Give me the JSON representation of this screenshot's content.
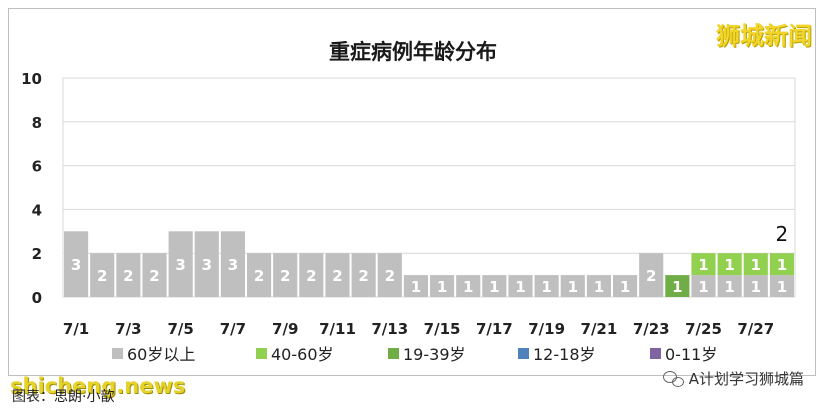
{
  "watermark_top": "狮城新闻",
  "watermark_bottom": "shicheng.news",
  "source": "图表：思朗·小歆",
  "wechat_account": "A计划学习狮城篇",
  "chart_data": {
    "type": "bar",
    "stacked": true,
    "title": "重症病例年龄分布",
    "xlabel": "",
    "ylabel": "",
    "ylim": [
      0,
      10
    ],
    "yticks": [
      0,
      2,
      4,
      6,
      8,
      10
    ],
    "grid": true,
    "legend_position": "bottom",
    "categories": [
      "7/1",
      "7/2",
      "7/3",
      "7/4",
      "7/5",
      "7/6",
      "7/7",
      "7/8",
      "7/9",
      "7/10",
      "7/11",
      "7/12",
      "7/13",
      "7/14",
      "7/15",
      "7/16",
      "7/17",
      "7/18",
      "7/19",
      "7/20",
      "7/21",
      "7/22",
      "7/23",
      "7/24",
      "7/25",
      "7/26",
      "7/27",
      "7/28"
    ],
    "tick_labels": [
      "7/1",
      "",
      "7/3",
      "",
      "7/5",
      "",
      "7/7",
      "",
      "7/9",
      "",
      "7/11",
      "",
      "7/13",
      "",
      "7/15",
      "",
      "7/17",
      "",
      "7/19",
      "",
      "7/21",
      "",
      "7/23",
      "",
      "7/25",
      "",
      "7/27",
      ""
    ],
    "series": [
      {
        "name": "60岁以上",
        "color": "#bfbfbf",
        "values": [
          3,
          2,
          2,
          2,
          3,
          3,
          3,
          2,
          2,
          2,
          2,
          2,
          2,
          1,
          1,
          1,
          1,
          1,
          1,
          1,
          1,
          1,
          2,
          0,
          1,
          1,
          1,
          1
        ]
      },
      {
        "name": "40-60岁",
        "color": "#92d050",
        "values": [
          0,
          0,
          0,
          0,
          0,
          0,
          0,
          0,
          0,
          0,
          0,
          0,
          0,
          0,
          0,
          0,
          0,
          0,
          0,
          0,
          0,
          0,
          0,
          0,
          1,
          1,
          1,
          1
        ]
      },
      {
        "name": "19-39岁",
        "color": "#70ad47",
        "values": [
          0,
          0,
          0,
          0,
          0,
          0,
          0,
          0,
          0,
          0,
          0,
          0,
          0,
          0,
          0,
          0,
          0,
          0,
          0,
          0,
          0,
          0,
          0,
          1,
          0,
          0,
          0,
          0
        ]
      },
      {
        "name": "12-18岁",
        "color": "#4f81bd",
        "values": [
          0,
          0,
          0,
          0,
          0,
          0,
          0,
          0,
          0,
          0,
          0,
          0,
          0,
          0,
          0,
          0,
          0,
          0,
          0,
          0,
          0,
          0,
          0,
          0,
          0,
          0,
          0,
          0
        ]
      },
      {
        "name": "0-11岁",
        "color": "#8064a2",
        "values": [
          0,
          0,
          0,
          0,
          0,
          0,
          0,
          0,
          0,
          0,
          0,
          0,
          0,
          0,
          0,
          0,
          0,
          0,
          0,
          0,
          0,
          0,
          0,
          0,
          0,
          0,
          0,
          0
        ]
      }
    ],
    "annotations": [
      {
        "category": "7/28",
        "text": "2"
      }
    ]
  }
}
